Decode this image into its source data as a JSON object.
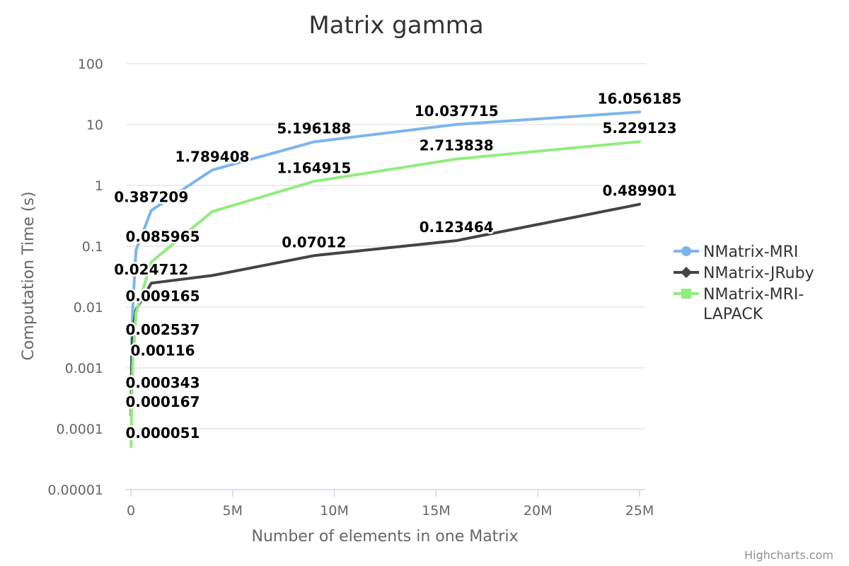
{
  "credits": "Highcharts.com",
  "chart_data": {
    "type": "line",
    "title": "Matrix gamma",
    "xlabel": "Number of elements in one Matrix",
    "ylabel": "Computation Time (s)",
    "x_scale": "linear",
    "y_scale": "log",
    "xlim": [
      0,
      25000000
    ],
    "ylim": [
      1e-05,
      100
    ],
    "x_ticks": [
      0,
      5000000,
      10000000,
      15000000,
      20000000,
      25000000
    ],
    "x_tick_labels": [
      "0",
      "5M",
      "10M",
      "15M",
      "20M",
      "25M"
    ],
    "y_ticks": [
      1e-05,
      0.0001,
      0.001,
      0.01,
      0.1,
      1,
      10,
      100
    ],
    "y_tick_labels": [
      "0.00001",
      "0.0001",
      "0.001",
      "0.01",
      "0.1",
      "1",
      "10",
      "100"
    ],
    "grid": true,
    "legend_position": "right",
    "x": [
      10000,
      40000,
      90000,
      250000,
      1000000,
      4000000,
      9000000,
      16000000,
      25000000
    ],
    "series": [
      {
        "name": "NMatrix-MRI",
        "color": "#7cb5ec",
        "marker": "circle",
        "values": [
          0.000343,
          0.002537,
          0.009165,
          0.085965,
          0.387209,
          1.789408,
          5.196188,
          10.037715,
          16.056185
        ],
        "data_labels": [
          "0.000343",
          "0.002537",
          "0.009165",
          "0.085965",
          "0.387209",
          "1.789408",
          "5.196188",
          "10.037715",
          "16.056185"
        ]
      },
      {
        "name": "NMatrix-JRuby",
        "color": "#434348",
        "marker": "diamond",
        "values": [
          0.000167,
          0.00116,
          0.004,
          0.009,
          0.024712,
          0.033,
          0.07012,
          0.123464,
          0.489901
        ],
        "data_labels": [
          "0.000167",
          "0.00116",
          "",
          "",
          "0.024712",
          "",
          "0.07012",
          "0.123464",
          "0.489901"
        ]
      },
      {
        "name": "NMatrix-MRI-LAPACK",
        "color": "#90ed7d",
        "marker": "square",
        "values": [
          5.1e-05,
          0.0003,
          0.0012,
          0.008,
          0.055,
          0.37,
          1.164915,
          2.713838,
          5.229123
        ],
        "data_labels": [
          "0.000051",
          "",
          "",
          "",
          "",
          "",
          "1.164915",
          "2.713838",
          "5.229123"
        ]
      }
    ]
  }
}
